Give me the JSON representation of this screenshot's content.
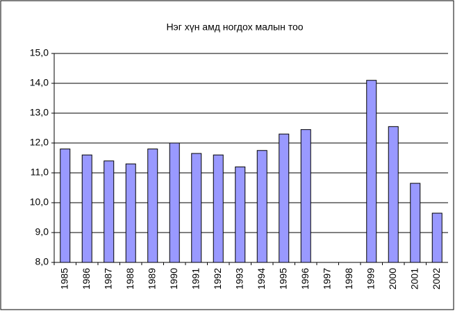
{
  "chart_data": {
    "type": "bar",
    "title": "Нэг хүн амд ногдох малын тоо",
    "categories": [
      "1985",
      "1986",
      "1987",
      "1988",
      "1989",
      "1990",
      "1991",
      "1992",
      "1993",
      "1994",
      "1995",
      "1996",
      "1997",
      "1998",
      "1999",
      "2000",
      "2001",
      "2002"
    ],
    "values": [
      11.8,
      11.6,
      11.4,
      11.3,
      11.8,
      12.0,
      11.65,
      11.6,
      11.2,
      11.75,
      12.3,
      12.45,
      null,
      null,
      14.1,
      12.55,
      10.65,
      9.65
    ],
    "color": "#9999ff",
    "ylim": [
      8,
      15
    ],
    "yticks": [
      {
        "value": 8,
        "label": "8,0"
      },
      {
        "value": 9,
        "label": "9,0"
      },
      {
        "value": 10,
        "label": "10,0"
      },
      {
        "value": 11,
        "label": "11,0"
      },
      {
        "value": 12,
        "label": "12,0"
      },
      {
        "value": 13,
        "label": "13,0"
      },
      {
        "value": 14,
        "label": "14,0"
      },
      {
        "value": 15,
        "label": "15,0"
      }
    ],
    "grid": true
  }
}
